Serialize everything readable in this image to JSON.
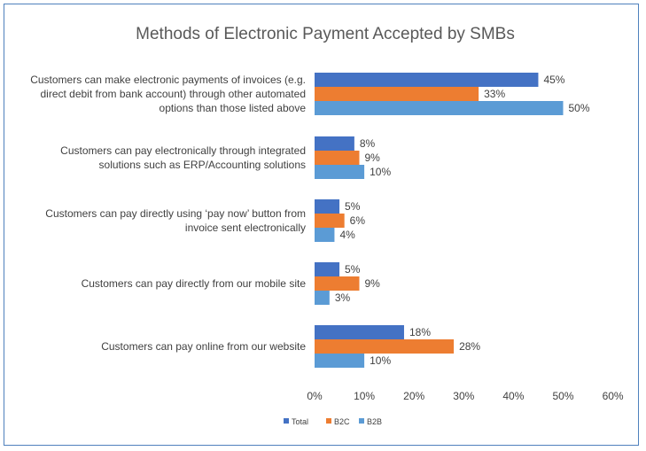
{
  "chart_data": {
    "type": "bar",
    "orientation": "horizontal",
    "title": "Methods of Electronic Payment Accepted by SMBs",
    "categories": [
      [
        "Customers can make electronic payments of invoices (e.g.",
        "direct debit from bank account) through other automated",
        "options than those listed above"
      ],
      [
        "Customers can pay electronically through integrated",
        "solutions such as ERP/Accounting solutions"
      ],
      [
        "Customers can pay directly using ‘pay now’ button from",
        "invoice sent electronically"
      ],
      [
        "Customers can pay directly from our mobile site"
      ],
      [
        "Customers can pay online from our website"
      ]
    ],
    "series": [
      {
        "name": "Total",
        "color": "#4472c4",
        "values": [
          45,
          8,
          5,
          5,
          18
        ],
        "labels": [
          "45%",
          "8%",
          "5%",
          "5%",
          "18%"
        ]
      },
      {
        "name": "B2C",
        "color": "#ed7d31",
        "values": [
          33,
          9,
          6,
          9,
          28
        ],
        "labels": [
          "33%",
          "9%",
          "6%",
          "9%",
          "28%"
        ]
      },
      {
        "name": "B2B",
        "color": "#5b9bd5",
        "values": [
          50,
          10,
          4,
          3,
          10
        ],
        "labels": [
          "50%",
          "10%",
          "4%",
          "3%",
          "10%"
        ]
      }
    ],
    "xlim": [
      0,
      60
    ],
    "xticks": [
      "0%",
      "10%",
      "20%",
      "30%",
      "40%",
      "50%",
      "60%"
    ],
    "xtick_values": [
      0,
      10,
      20,
      30,
      40,
      50,
      60
    ],
    "grid": false,
    "legend": "bottom"
  }
}
